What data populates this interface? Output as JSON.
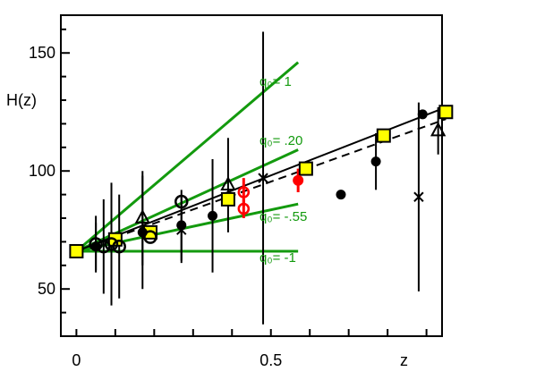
{
  "chart_data": {
    "type": "scatter",
    "title": "",
    "xlabel": "z",
    "ylabel": "H(z)",
    "xlim": [
      -0.04,
      0.94
    ],
    "ylim": [
      30,
      166
    ],
    "x_ticks": [
      {
        "value": 0,
        "label": "0"
      },
      {
        "value": 0.5,
        "label": "0.5"
      }
    ],
    "y_ticks": [
      {
        "value": 50,
        "label": "50"
      },
      {
        "value": 100,
        "label": "100"
      },
      {
        "value": 150,
        "label": "150"
      }
    ],
    "grid": false,
    "colors": {
      "model_lines": "#139a0e",
      "fit_line": "#000000",
      "squares_fill": "#ffff00",
      "red_points": "#ff0000"
    },
    "model_lines": [
      {
        "label": "q₀= 1",
        "x": [
          0,
          0.57
        ],
        "y": [
          66,
          146
        ]
      },
      {
        "label": "q₀= .20",
        "x": [
          0,
          0.57
        ],
        "y": [
          66,
          109
        ]
      },
      {
        "label": "q₀= -.55",
        "x": [
          0,
          0.57
        ],
        "y": [
          66,
          86
        ]
      },
      {
        "label": "q₀= -1",
        "x": [
          0,
          0.57
        ],
        "y": [
          66,
          66
        ]
      }
    ],
    "fit_lines": [
      {
        "style": "solid",
        "x": [
          0,
          0.95
        ],
        "y": [
          66,
          127
        ]
      },
      {
        "style": "dashed",
        "x": [
          0,
          0.95
        ],
        "y": [
          66,
          122
        ]
      }
    ],
    "series": [
      {
        "marker": "square",
        "points": [
          {
            "x": 0,
            "y": 66,
            "err": 0
          },
          {
            "x": 0.1,
            "y": 71,
            "err": 0
          },
          {
            "x": 0.19,
            "y": 74,
            "err": 0
          },
          {
            "x": 0.39,
            "y": 88,
            "err": 0
          },
          {
            "x": 0.59,
            "y": 101,
            "err": 0
          },
          {
            "x": 0.79,
            "y": 115,
            "err": 0
          },
          {
            "x": 0.95,
            "y": 125,
            "err": 0
          }
        ]
      },
      {
        "marker": "circle-filled",
        "points": [
          {
            "x": 0.05,
            "y": 68,
            "err": 10
          },
          {
            "x": 0.17,
            "y": 74,
            "err": 24
          },
          {
            "x": 0.27,
            "y": 77,
            "err": 15
          },
          {
            "x": 0.35,
            "y": 81,
            "err": 24
          },
          {
            "x": 0.68,
            "y": 90,
            "err": 0
          },
          {
            "x": 0.77,
            "y": 104,
            "err": 12
          },
          {
            "x": 0.89,
            "y": 124,
            "err": 0
          }
        ]
      },
      {
        "marker": "circle-open",
        "points": [
          {
            "x": 0.05,
            "y": 69,
            "err": 12
          },
          {
            "x": 0.07,
            "y": 68,
            "err": 20
          },
          {
            "x": 0.09,
            "y": 69,
            "err": 26
          },
          {
            "x": 0.11,
            "y": 68,
            "err": 22
          },
          {
            "x": 0.19,
            "y": 72,
            "err": 0
          },
          {
            "x": 0.27,
            "y": 87,
            "err": 0
          }
        ]
      },
      {
        "marker": "circle-open-red",
        "points": [
          {
            "x": 0.43,
            "y": 84,
            "err": 4
          },
          {
            "x": 0.43,
            "y": 91,
            "err": 6
          }
        ]
      },
      {
        "marker": "circle-filled-red",
        "points": [
          {
            "x": 0.57,
            "y": 96,
            "err": 5
          }
        ]
      },
      {
        "marker": "triangle",
        "points": [
          {
            "x": 0.17,
            "y": 80,
            "err": 20
          },
          {
            "x": 0.39,
            "y": 94,
            "err": 20
          },
          {
            "x": 0.93,
            "y": 117,
            "err": 10
          }
        ]
      },
      {
        "marker": "cross",
        "points": [
          {
            "x": 0.27,
            "y": 75,
            "err": 14
          },
          {
            "x": 0.48,
            "y": 97,
            "err": 62
          },
          {
            "x": 0.88,
            "y": 89,
            "err": 40
          }
        ]
      }
    ]
  }
}
